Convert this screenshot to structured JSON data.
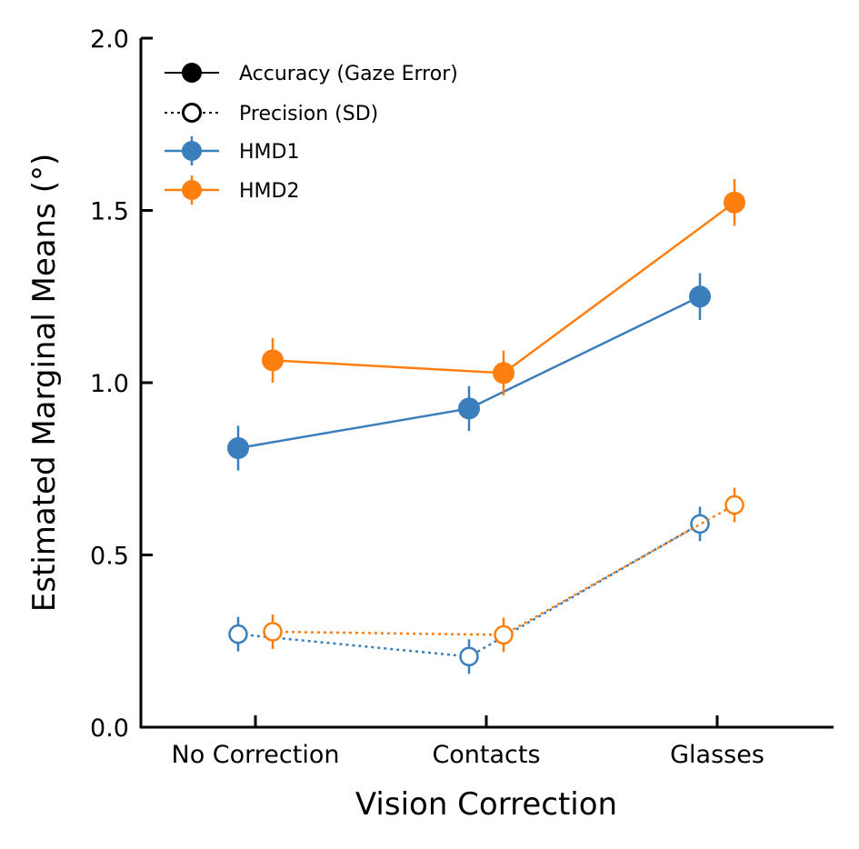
{
  "chart_data": {
    "type": "line",
    "xlabel": "Vision Correction",
    "ylabel": "Estimated Marginal Means (°)",
    "categories": [
      "No Correction",
      "Contacts",
      "Glasses"
    ],
    "ylim": [
      0.0,
      2.0
    ],
    "yticks": [
      "0.0",
      "0.5",
      "1.0",
      "1.5",
      "2.0"
    ],
    "grid": false,
    "legend_position": "top-left",
    "legend": [
      {
        "label": "Accuracy (Gaze Error)",
        "style": "solid-filled"
      },
      {
        "label": "Precision (SD)",
        "style": "dotted-open"
      },
      {
        "label": "HMD1",
        "color": "#3a7ebb"
      },
      {
        "label": "HMD2",
        "color": "#ff7f0e"
      }
    ],
    "series": [
      {
        "name": "HMD1",
        "metric": "Accuracy (Gaze Error)",
        "color": "#3a7ebb",
        "values": [
          0.81,
          0.925,
          1.25
        ],
        "errors": [
          0.065,
          0.065,
          0.068
        ]
      },
      {
        "name": "HMD2",
        "metric": "Accuracy (Gaze Error)",
        "color": "#ff7f0e",
        "values": [
          1.065,
          1.028,
          1.523
        ],
        "errors": [
          0.065,
          0.065,
          0.068
        ]
      },
      {
        "name": "HMD1",
        "metric": "Precision (SD)",
        "color": "#3a7ebb",
        "values": [
          0.27,
          0.205,
          0.59
        ],
        "errors": [
          0.05,
          0.05,
          0.05
        ]
      },
      {
        "name": "HMD2",
        "metric": "Precision (SD)",
        "color": "#ff7f0e",
        "values": [
          0.277,
          0.268,
          0.645
        ],
        "errors": [
          0.05,
          0.05,
          0.05
        ]
      }
    ]
  }
}
